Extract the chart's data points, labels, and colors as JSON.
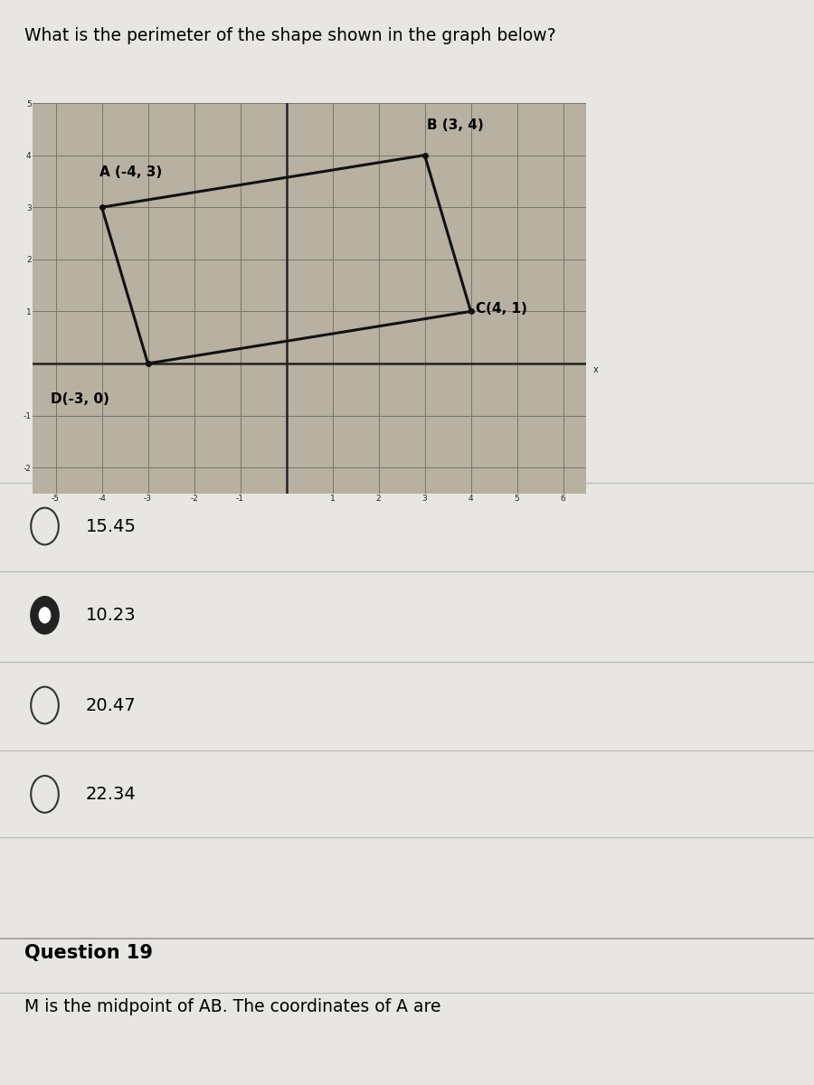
{
  "question_text": "What is the perimeter of the shape shown in the graph below?",
  "points": {
    "A": [
      -4,
      3
    ],
    "B": [
      3,
      4
    ],
    "C": [
      4,
      1
    ],
    "D": [
      -3,
      0
    ]
  },
  "point_labels": {
    "A": "A (-4, 3)",
    "B": "B (3, 4)",
    "C": "C(4, 1)",
    "D": "D(-3, 0)"
  },
  "options": [
    {
      "text": "15.45",
      "selected": false
    },
    {
      "text": "10.23",
      "selected": true
    },
    {
      "text": "20.47",
      "selected": false
    },
    {
      "text": "22.34",
      "selected": false
    }
  ],
  "next_question_label": "Question 19",
  "next_question_text": "M is the midpoint of AB. The coordinates of A are",
  "graph_bg": "#b8b0a0",
  "shape_color": "#111111",
  "axis_color": "#222222",
  "page_bg": "#e8e6e2",
  "xlim": [
    -5.5,
    6.5
  ],
  "ylim": [
    -2.5,
    5.0
  ],
  "xticks": [
    -5,
    -4,
    -3,
    -2,
    -1,
    0,
    1,
    2,
    3,
    4,
    5,
    6
  ],
  "yticks": [
    -2,
    -1,
    0,
    1,
    2,
    3,
    4,
    5
  ]
}
